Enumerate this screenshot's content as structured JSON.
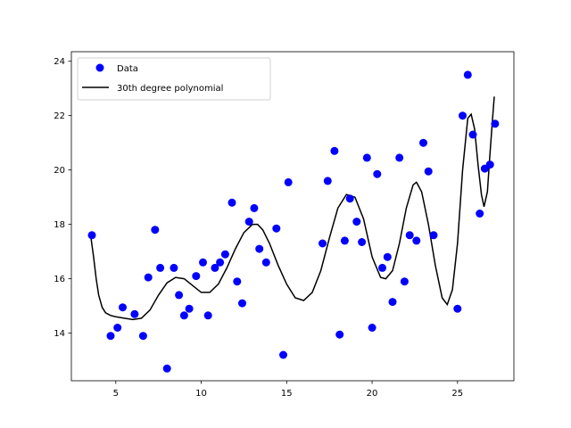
{
  "chart_data": {
    "type": "scatter",
    "x_ticks": [
      5,
      10,
      15,
      20,
      25
    ],
    "y_ticks": [
      14,
      16,
      18,
      20,
      22,
      24
    ],
    "xlim": [
      2.4,
      28.3
    ],
    "ylim": [
      12.25,
      24.35
    ],
    "grid": false,
    "legend_position": "top-left",
    "series": [
      {
        "name": "Data",
        "kind": "scatter",
        "color": "#0000ff",
        "points": [
          [
            3.6,
            17.6
          ],
          [
            4.7,
            13.9
          ],
          [
            5.1,
            14.2
          ],
          [
            5.4,
            14.95
          ],
          [
            6.1,
            14.7
          ],
          [
            6.6,
            13.9
          ],
          [
            6.9,
            16.05
          ],
          [
            7.3,
            17.8
          ],
          [
            7.6,
            16.4
          ],
          [
            8.0,
            12.7
          ],
          [
            8.4,
            16.4
          ],
          [
            8.7,
            15.4
          ],
          [
            9.0,
            14.65
          ],
          [
            9.3,
            14.9
          ],
          [
            9.7,
            16.1
          ],
          [
            10.1,
            16.6
          ],
          [
            10.4,
            14.65
          ],
          [
            10.8,
            16.4
          ],
          [
            11.1,
            16.6
          ],
          [
            11.4,
            16.9
          ],
          [
            11.8,
            18.8
          ],
          [
            12.1,
            15.9
          ],
          [
            12.4,
            15.1
          ],
          [
            12.8,
            18.1
          ],
          [
            13.1,
            18.6
          ],
          [
            13.4,
            17.1
          ],
          [
            13.8,
            16.6
          ],
          [
            14.4,
            17.85
          ],
          [
            14.8,
            13.2
          ],
          [
            15.1,
            19.55
          ],
          [
            17.1,
            17.3
          ],
          [
            17.4,
            19.6
          ],
          [
            17.8,
            20.7
          ],
          [
            18.1,
            13.95
          ],
          [
            18.4,
            17.4
          ],
          [
            18.7,
            18.95
          ],
          [
            19.1,
            18.1
          ],
          [
            19.4,
            17.35
          ],
          [
            19.7,
            20.45
          ],
          [
            20.0,
            14.2
          ],
          [
            20.3,
            19.85
          ],
          [
            20.6,
            16.4
          ],
          [
            20.9,
            16.8
          ],
          [
            21.2,
            15.15
          ],
          [
            21.6,
            20.45
          ],
          [
            21.9,
            15.9
          ],
          [
            22.2,
            17.6
          ],
          [
            22.6,
            17.4
          ],
          [
            23.0,
            21.0
          ],
          [
            23.3,
            19.95
          ],
          [
            23.6,
            17.6
          ],
          [
            25.0,
            14.9
          ],
          [
            25.3,
            22.0
          ],
          [
            25.6,
            23.5
          ],
          [
            25.9,
            21.3
          ],
          [
            26.3,
            18.4
          ],
          [
            26.6,
            20.05
          ],
          [
            26.9,
            20.2
          ],
          [
            27.2,
            21.7
          ]
        ]
      },
      {
        "name": "30th degree polynomial",
        "kind": "line",
        "color": "#000000",
        "points": [
          [
            3.55,
            17.5
          ],
          [
            3.7,
            16.8
          ],
          [
            3.85,
            16.0
          ],
          [
            4.0,
            15.4
          ],
          [
            4.2,
            14.95
          ],
          [
            4.4,
            14.75
          ],
          [
            4.7,
            14.65
          ],
          [
            5.0,
            14.6
          ],
          [
            5.5,
            14.55
          ],
          [
            6.0,
            14.5
          ],
          [
            6.5,
            14.55
          ],
          [
            7.0,
            14.85
          ],
          [
            7.5,
            15.4
          ],
          [
            8.0,
            15.85
          ],
          [
            8.5,
            16.05
          ],
          [
            9.0,
            16.0
          ],
          [
            9.5,
            15.75
          ],
          [
            10.0,
            15.5
          ],
          [
            10.5,
            15.5
          ],
          [
            11.0,
            15.8
          ],
          [
            11.5,
            16.4
          ],
          [
            12.0,
            17.1
          ],
          [
            12.5,
            17.7
          ],
          [
            13.0,
            18.0
          ],
          [
            13.3,
            18.0
          ],
          [
            13.6,
            17.8
          ],
          [
            14.0,
            17.3
          ],
          [
            14.5,
            16.5
          ],
          [
            15.0,
            15.8
          ],
          [
            15.5,
            15.3
          ],
          [
            16.0,
            15.2
          ],
          [
            16.5,
            15.5
          ],
          [
            17.0,
            16.3
          ],
          [
            17.5,
            17.5
          ],
          [
            18.0,
            18.6
          ],
          [
            18.5,
            19.1
          ],
          [
            19.0,
            19.0
          ],
          [
            19.5,
            18.2
          ],
          [
            20.0,
            16.8
          ],
          [
            20.5,
            16.05
          ],
          [
            20.8,
            16.0
          ],
          [
            21.2,
            16.3
          ],
          [
            21.6,
            17.3
          ],
          [
            22.0,
            18.6
          ],
          [
            22.4,
            19.45
          ],
          [
            22.6,
            19.55
          ],
          [
            22.9,
            19.2
          ],
          [
            23.3,
            18.0
          ],
          [
            23.7,
            16.5
          ],
          [
            24.1,
            15.3
          ],
          [
            24.4,
            15.05
          ],
          [
            24.7,
            15.6
          ],
          [
            25.0,
            17.3
          ],
          [
            25.3,
            20.0
          ],
          [
            25.6,
            21.9
          ],
          [
            25.8,
            22.05
          ],
          [
            26.0,
            21.5
          ],
          [
            26.2,
            20.2
          ],
          [
            26.4,
            19.1
          ],
          [
            26.55,
            18.65
          ],
          [
            26.75,
            19.2
          ],
          [
            26.9,
            20.6
          ],
          [
            27.05,
            21.9
          ],
          [
            27.15,
            22.7
          ]
        ]
      }
    ]
  }
}
